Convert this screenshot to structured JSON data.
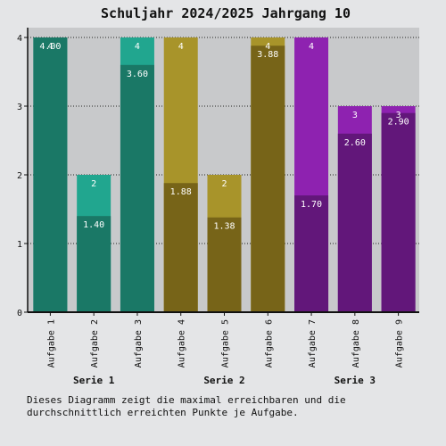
{
  "chart_data": {
    "type": "bar",
    "title": "Schuljahr 2024/2025 Jahrgang 10",
    "categories": [
      "Aufgabe 1",
      "Aufgabe 2",
      "Aufgabe 3",
      "Aufgabe 4",
      "Aufgabe 5",
      "Aufgabe 6",
      "Aufgabe 7",
      "Aufgabe 8",
      "Aufgabe 9"
    ],
    "groups": [
      {
        "label": "Serie 1",
        "categories": [
          0,
          1,
          2
        ],
        "max_color": "#21a68f",
        "avg_color": "#1a7866"
      },
      {
        "label": "Serie 2",
        "categories": [
          3,
          4,
          5
        ],
        "max_color": "#a8942a",
        "avg_color": "#776418"
      },
      {
        "label": "Serie 3",
        "categories": [
          6,
          7,
          8
        ],
        "max_color": "#8e22b0",
        "avg_color": "#62177a"
      }
    ],
    "series": [
      {
        "values": [
          4,
          2,
          4,
          4,
          2,
          4,
          4,
          3,
          3
        ]
      },
      {
        "values": [
          4.0,
          1.4,
          3.6,
          1.88,
          1.38,
          3.88,
          1.7,
          2.6,
          2.9
        ]
      }
    ],
    "max_labels": [
      "4",
      "2",
      "4",
      "4",
      "2",
      "4",
      "4",
      "3",
      "3"
    ],
    "avg_labels": [
      "4.00",
      "1.40",
      "3.60",
      "1.88",
      "1.38",
      "3.88",
      "1.70",
      "2.60",
      "2.90"
    ],
    "ylim": [
      0,
      4
    ],
    "yticks": [
      0,
      1,
      2,
      3,
      4
    ],
    "grid": true,
    "plot_background": "#c8c9cb"
  },
  "caption": "Dieses Diagramm zeigt die maximal erreichbaren und die durchschnittlich erreichten Punkte je Aufgabe."
}
